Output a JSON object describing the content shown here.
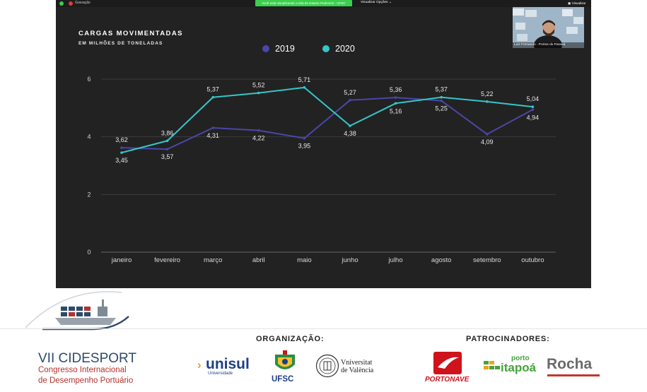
{
  "zoom": {
    "recording_label": "Gravação",
    "banner": "Você está visualizando a tela de Daiane Pederzini - UFSC",
    "view_options": "Visualizar Opções",
    "view_options_chevron": "chevron-down-icon",
    "viewer_label": "Visualizar",
    "participant_name": "Luiz Fernando - Portos do Paraná"
  },
  "chart_data": {
    "type": "line",
    "title": "CARGAS MOVIMENTADAS",
    "subtitle": "EM MILHÕES DE TONELADAS",
    "categories": [
      "janeiro",
      "fevereiro",
      "março",
      "abril",
      "maio",
      "junho",
      "julho",
      "agosto",
      "setembro",
      "outubro"
    ],
    "series": [
      {
        "name": "2019",
        "color": "#4b46a8",
        "values": [
          3.62,
          3.57,
          4.31,
          4.22,
          3.95,
          5.27,
          5.36,
          5.25,
          4.09,
          4.94
        ],
        "labels": [
          "3,62",
          "3,57",
          "4,31",
          "4,22",
          "3,95",
          "5,27",
          "5,36",
          "5,25",
          "4,09",
          "4,94"
        ]
      },
      {
        "name": "2020",
        "color": "#35c6c8",
        "values": [
          3.45,
          3.86,
          5.37,
          5.52,
          5.71,
          4.38,
          5.16,
          5.37,
          5.22,
          5.04
        ],
        "labels": [
          "3,45",
          "3,86",
          "5,37",
          "5,52",
          "5,71",
          "4,38",
          "5,16",
          "5,37",
          "5,22",
          "5,04"
        ]
      }
    ],
    "y_ticks": [
      "6",
      "4",
      "2",
      "0"
    ],
    "y_tick_values": [
      6,
      4,
      2,
      0
    ],
    "ylim": [
      0,
      6
    ],
    "grid": true,
    "legend_position": "top"
  },
  "footer": {
    "event_title": "VII CIDESPORT",
    "event_subtitle_1": "Congresso Internacional",
    "event_subtitle_2": "de Desempenho Portuário",
    "org_label": "ORGANIZAÇÃO:",
    "sponsors_label": "PATROCINADORES:",
    "unisul": "unisul",
    "unisul_sub": "Universidade",
    "ufsc": "UFSC",
    "valencia_1": "Vniversitat",
    "valencia_2": "de València",
    "portonave": "PORTONAVE",
    "itapoa_top": "porto",
    "itapoa": "itapoá",
    "rocha": "Rocha",
    "colors": {
      "navy": "#2e4a6b",
      "red": "#b5322d",
      "unisul_blue": "#1d3e8a",
      "portonave_red": "#d0121b",
      "itapoa_green": "#45a23c"
    }
  }
}
